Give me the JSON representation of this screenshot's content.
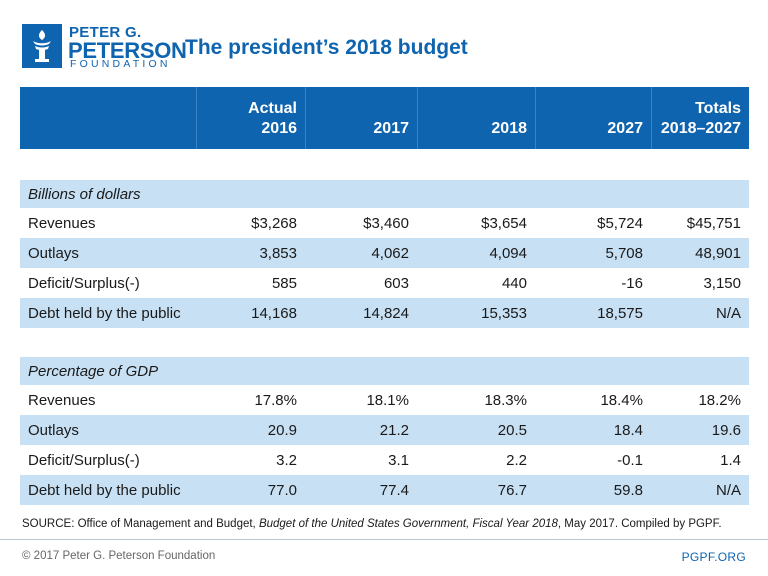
{
  "logo": {
    "line1": "PETER G.",
    "line2": "PETERSON",
    "line3": "FOUNDATION",
    "icon": "torch-icon",
    "color": "#0f64b0"
  },
  "title": "The president’s 2018 budget",
  "table": {
    "headers": [
      {
        "line1": "",
        "line2": ""
      },
      {
        "line1": "Actual",
        "line2": "2016"
      },
      {
        "line1": "",
        "line2": "2017"
      },
      {
        "line1": "",
        "line2": "2018"
      },
      {
        "line1": "",
        "line2": "2027"
      },
      {
        "line1": "Totals",
        "line2": "2018–2027"
      }
    ],
    "sections": [
      {
        "label": "Billions of dollars",
        "rows": [
          {
            "label": "Revenues",
            "values": [
              "$3,268",
              "$3,460",
              "$3,654",
              "$5,724",
              "$45,751"
            ]
          },
          {
            "label": "Outlays",
            "values": [
              "3,853",
              "4,062",
              "4,094",
              "5,708",
              "48,901"
            ]
          },
          {
            "label": "Deficit/Surplus(-)",
            "values": [
              "585",
              "603",
              "440",
              "-16",
              "3,150"
            ]
          },
          {
            "label": "Debt held by the public",
            "values": [
              "14,168",
              "14,824",
              "15,353",
              "18,575",
              "N/A"
            ]
          }
        ]
      },
      {
        "label": "Percentage of GDP",
        "rows": [
          {
            "label": "Revenues",
            "values": [
              "17.8%",
              "18.1%",
              "18.3%",
              "18.4%",
              "18.2%"
            ]
          },
          {
            "label": "Outlays",
            "values": [
              "20.9",
              "21.2",
              "20.5",
              "18.4",
              "19.6"
            ]
          },
          {
            "label": "Deficit/Surplus(-)",
            "values": [
              "3.2",
              "3.1",
              "2.2",
              "-0.1",
              "1.4"
            ]
          },
          {
            "label": "Debt held by the public",
            "values": [
              "77.0",
              "77.4",
              "76.7",
              "59.8",
              "N/A"
            ]
          }
        ]
      }
    ]
  },
  "source": {
    "prefix": "SOURCE: Office of Management and Budget, ",
    "italic1": "Budget of the United States Government, Fiscal Year 2018",
    "suffix": ", May 2017. Compiled by PGPF."
  },
  "footer": {
    "copyright": "© 2017 Peter G. Peterson Foundation",
    "site": "PGPF.ORG"
  },
  "colors": {
    "brand": "#0f64b0",
    "row_shade": "#c7e0f4"
  }
}
